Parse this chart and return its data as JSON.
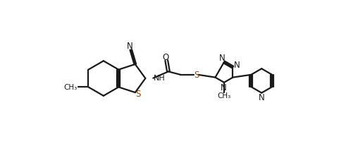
{
  "bg": "#ffffff",
  "lc": "#1a1a1a",
  "sc": "#8B4513",
  "lw": 1.6,
  "figsize": [
    4.91,
    2.32
  ],
  "dpi": 100,
  "xlim": [
    -0.5,
    10.5
  ],
  "ylim": [
    -0.3,
    4.9
  ]
}
